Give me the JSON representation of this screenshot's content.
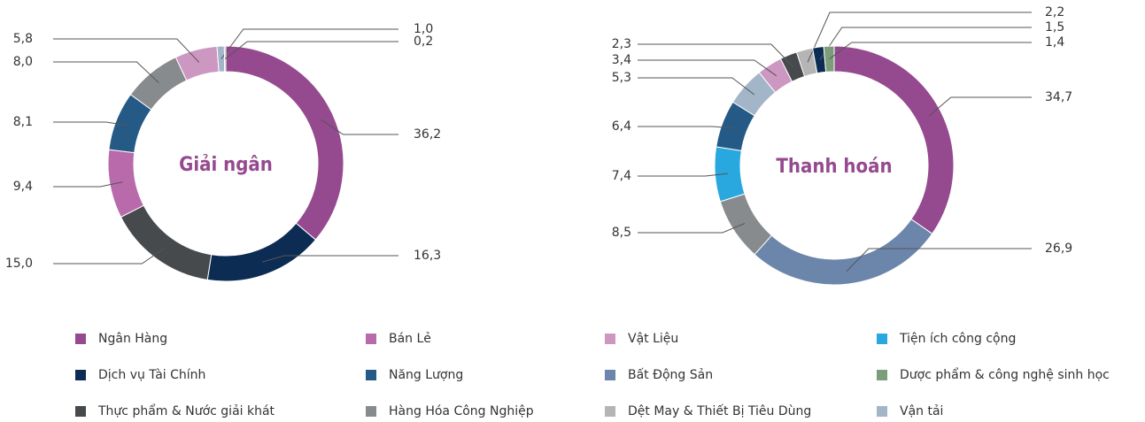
{
  "chart_data": [
    {
      "type": "pie",
      "title": "Giải ngân",
      "categories": [
        "Ngân Hàng",
        "Dịch vụ Tài Chính",
        "Thực phẩm & Nước giải khát",
        "Bán Lẻ",
        "Năng Lượng",
        "Hàng Hóa Công Nghiệp",
        "Vật Liệu",
        "Vận tải",
        "Dệt May & Thiết Bị Tiêu Dùng"
      ],
      "values": [
        36.2,
        16.3,
        15.0,
        9.4,
        8.1,
        8.0,
        5.8,
        1.0,
        0.2
      ],
      "value_labels": [
        "36,2",
        "16,3",
        "15,0",
        "9,4",
        "8,1",
        "8,0",
        "5,8",
        "1,0",
        "0,2"
      ]
    },
    {
      "type": "pie",
      "title": "Thanh hoán",
      "categories": [
        "Ngân Hàng",
        "Bất Động Sản",
        "Hàng Hóa Công Nghiệp",
        "Tiện ích công cộng",
        "Năng Lượng",
        "Vận tải",
        "Vật Liệu",
        "Thực phẩm & Nước giải khát",
        "Dệt May & Thiết Bị Tiêu Dùng",
        "Dịch vụ Tài Chính",
        "Dược phẩm & công nghệ sinh học"
      ],
      "values": [
        34.7,
        26.9,
        8.5,
        7.4,
        6.4,
        5.3,
        3.4,
        2.3,
        2.2,
        1.5,
        1.4
      ],
      "value_labels": [
        "34,7",
        "26,9",
        "8,5",
        "7,4",
        "6,4",
        "5,3",
        "3,4",
        "2,3",
        "2,2",
        "1,5",
        "1,4"
      ]
    }
  ],
  "legend": [
    {
      "name": "Ngân Hàng",
      "color": "#954a8f"
    },
    {
      "name": "Bán Lẻ",
      "color": "#b86aab"
    },
    {
      "name": "Vật Liệu",
      "color": "#cc97c1"
    },
    {
      "name": "Tiện ích công cộng",
      "color": "#29a8e0"
    },
    {
      "name": "Dịch vụ Tài Chính",
      "color": "#0d2c54"
    },
    {
      "name": "Năng Lượng",
      "color": "#255a86"
    },
    {
      "name": "Bất Động Sản",
      "color": "#6b86aa"
    },
    {
      "name": "Dược phẩm & công nghệ sinh học",
      "color": "#7c9d7a"
    },
    {
      "name": "Thực phẩm & Nước giải khát",
      "color": "#474a4c"
    },
    {
      "name": "Hàng Hóa Công Nghiệp",
      "color": "#888b8d"
    },
    {
      "name": "Dệt May & Thiết Bị Tiêu Dùng",
      "color": "#b5b5b5"
    },
    {
      "name": "Vận tải",
      "color": "#a3b5c8"
    }
  ]
}
